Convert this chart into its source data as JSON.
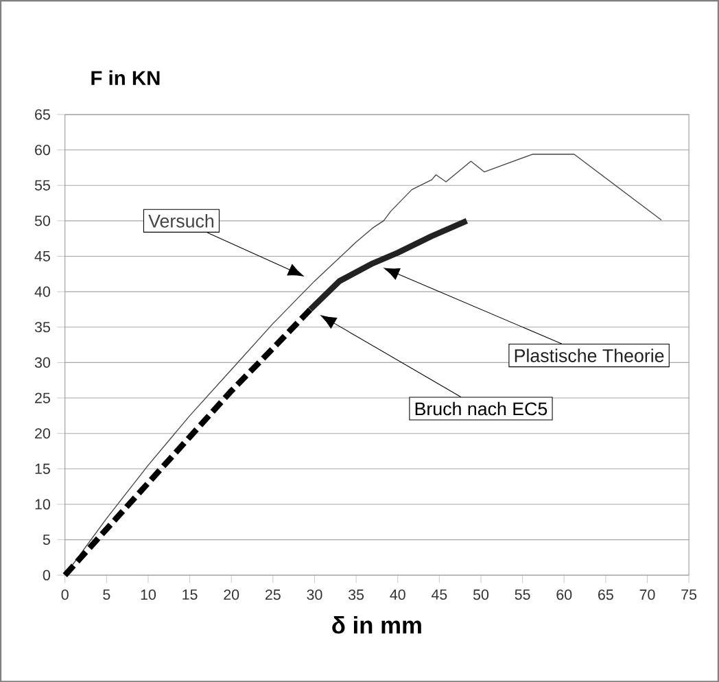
{
  "chart_data": {
    "type": "line",
    "xlabel": "δ in mm",
    "ylabel": "F in KN",
    "xlim": [
      0,
      75
    ],
    "ylim": [
      0,
      65
    ],
    "xticks": [
      0,
      5,
      10,
      15,
      20,
      25,
      30,
      35,
      40,
      45,
      50,
      55,
      60,
      65,
      70,
      75
    ],
    "yticks": [
      0,
      5,
      10,
      15,
      20,
      25,
      30,
      35,
      40,
      45,
      50,
      55,
      60,
      65
    ],
    "grid": "y",
    "series": [
      {
        "name": "Versuch",
        "color": "#444444",
        "line_style": "solid",
        "x": [
          0,
          5,
          10,
          15,
          20,
          25,
          30,
          35,
          37,
          38.3,
          39.2,
          41.7,
          44.1,
          44.6,
          45.8,
          48.8,
          50.4,
          56.2,
          61.2,
          71.7
        ],
        "values": [
          0,
          8,
          15.5,
          22.5,
          29,
          35.5,
          41.5,
          47,
          49,
          50,
          51.4,
          54.4,
          55.8,
          56.5,
          55.5,
          58.4,
          56.9,
          59.4,
          59.4,
          50.1
        ]
      },
      {
        "name": "Plastische Theorie",
        "color": "#222222",
        "line_style": "solid",
        "x": [
          29.5,
          33,
          37,
          40,
          44,
          48.3
        ],
        "values": [
          37.5,
          41.5,
          44,
          45.5,
          47.8,
          50
        ]
      },
      {
        "name": "Bruch nach EC5",
        "color": "#000000",
        "line_style": "dashed",
        "x": [
          0,
          5,
          10,
          15,
          20,
          25,
          29.5
        ],
        "values": [
          0,
          6.5,
          13,
          19.5,
          26,
          32,
          37.5
        ]
      }
    ]
  }
}
